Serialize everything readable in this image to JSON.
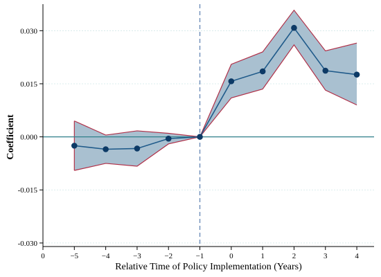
{
  "chart_data": {
    "type": "line",
    "title": "",
    "xlabel": "Relative Time of Policy Implementation (Years)",
    "ylabel": "Coefficient",
    "x_ticks": [
      {
        "value": 0,
        "label": "0"
      },
      {
        "value": 1,
        "label": "−5"
      },
      {
        "value": 2,
        "label": "−4"
      },
      {
        "value": 3,
        "label": "−3"
      },
      {
        "value": 4,
        "label": "−2"
      },
      {
        "value": 5,
        "label": "−1"
      },
      {
        "value": 6,
        "label": "0"
      },
      {
        "value": 7,
        "label": "1"
      },
      {
        "value": 8,
        "label": "2"
      },
      {
        "value": 9,
        "label": "3"
      },
      {
        "value": 10,
        "label": "4"
      }
    ],
    "y_ticks": [
      {
        "value": 0.03,
        "label": "0.030"
      },
      {
        "value": 0.015,
        "label": "0.015"
      },
      {
        "value": 0.0,
        "label": "0.000"
      },
      {
        "value": -0.015,
        "label": "-0.015"
      },
      {
        "value": -0.03,
        "label": "-0.030"
      }
    ],
    "xlim": [
      0,
      10.55
    ],
    "ylim": [
      -0.031,
      0.0375
    ],
    "grid": true,
    "reference_lines": {
      "horizontal_y": 0.0,
      "vertical_x": 5
    },
    "series": [
      {
        "points": [
          {
            "x": 1,
            "y": -0.0025,
            "lower": -0.0095,
            "upper": 0.0045
          },
          {
            "x": 2,
            "y": -0.0035,
            "lower": -0.0075,
            "upper": 0.0005
          },
          {
            "x": 3,
            "y": -0.0033,
            "lower": -0.0083,
            "upper": 0.0017
          },
          {
            "x": 4,
            "y": -0.0005,
            "lower": -0.002,
            "upper": 0.001
          },
          {
            "x": 5,
            "y": 0.0,
            "lower": 0.0,
            "upper": 0.0
          },
          {
            "x": 6,
            "y": 0.0157,
            "lower": 0.011,
            "upper": 0.0205
          },
          {
            "x": 7,
            "y": 0.0185,
            "lower": 0.0135,
            "upper": 0.024
          },
          {
            "x": 8,
            "y": 0.0308,
            "lower": 0.026,
            "upper": 0.0358
          },
          {
            "x": 9,
            "y": 0.0187,
            "lower": 0.0132,
            "upper": 0.0243
          },
          {
            "x": 10,
            "y": 0.0176,
            "lower": 0.009,
            "upper": 0.0265
          }
        ]
      }
    ],
    "colors": {
      "line": "#1f5a8a",
      "marker": "#0d3a66",
      "band_fill": "#a9c0d0",
      "band_edge": "#b03048",
      "zero_line": "#2f7f8a",
      "vertical_line": "#5b7fb0",
      "grid": "#cfe6e6"
    }
  }
}
